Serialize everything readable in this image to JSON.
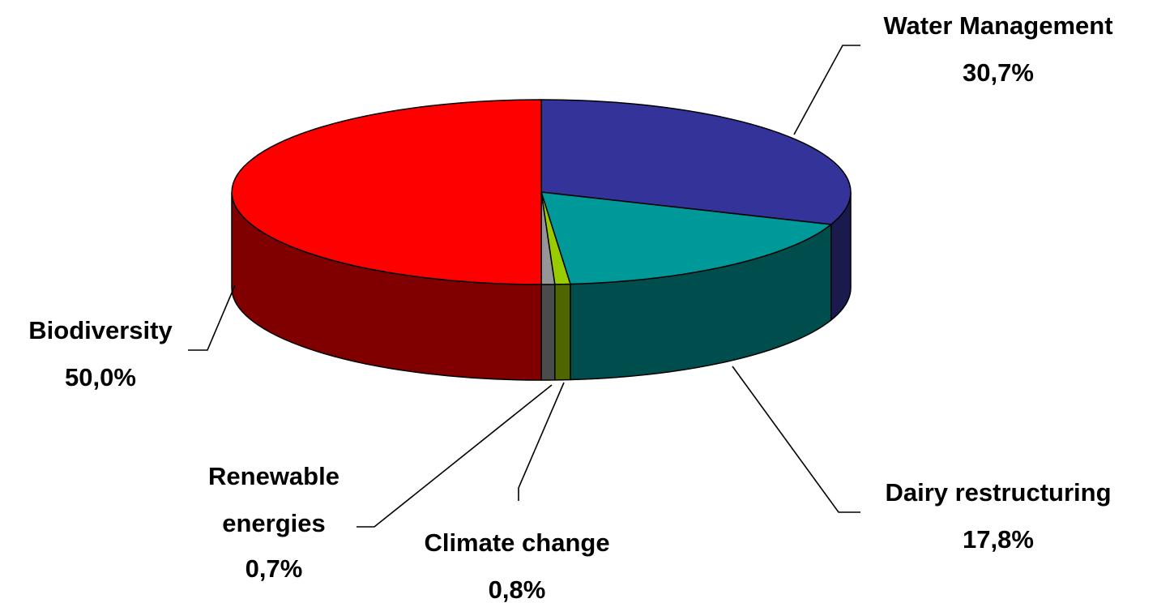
{
  "chart_data": {
    "type": "pie",
    "style": "3d",
    "title": "",
    "slices": [
      {
        "label": "Water Management",
        "value_text": "30,7%",
        "value": 30.7,
        "color": "#333399",
        "side_color": "#1a1a4d"
      },
      {
        "label": "Dairy restructuring",
        "value_text": "17,8%",
        "value": 17.8,
        "color": "#009999",
        "side_color": "#004d4d"
      },
      {
        "label": "Climate change",
        "value_text": "0,8%",
        "value": 0.8,
        "color": "#99cc00",
        "side_color": "#4d6600"
      },
      {
        "label": "Renewable energies",
        "label_lines": [
          "Renewable",
          "energies"
        ],
        "value_text": "0,7%",
        "value": 0.7,
        "color": "#969696",
        "side_color": "#4b4b4b"
      },
      {
        "label": "Biodiversity",
        "value_text": "50,0%",
        "value": 50.0,
        "color": "#ff0000",
        "side_color": "#800000"
      }
    ]
  }
}
